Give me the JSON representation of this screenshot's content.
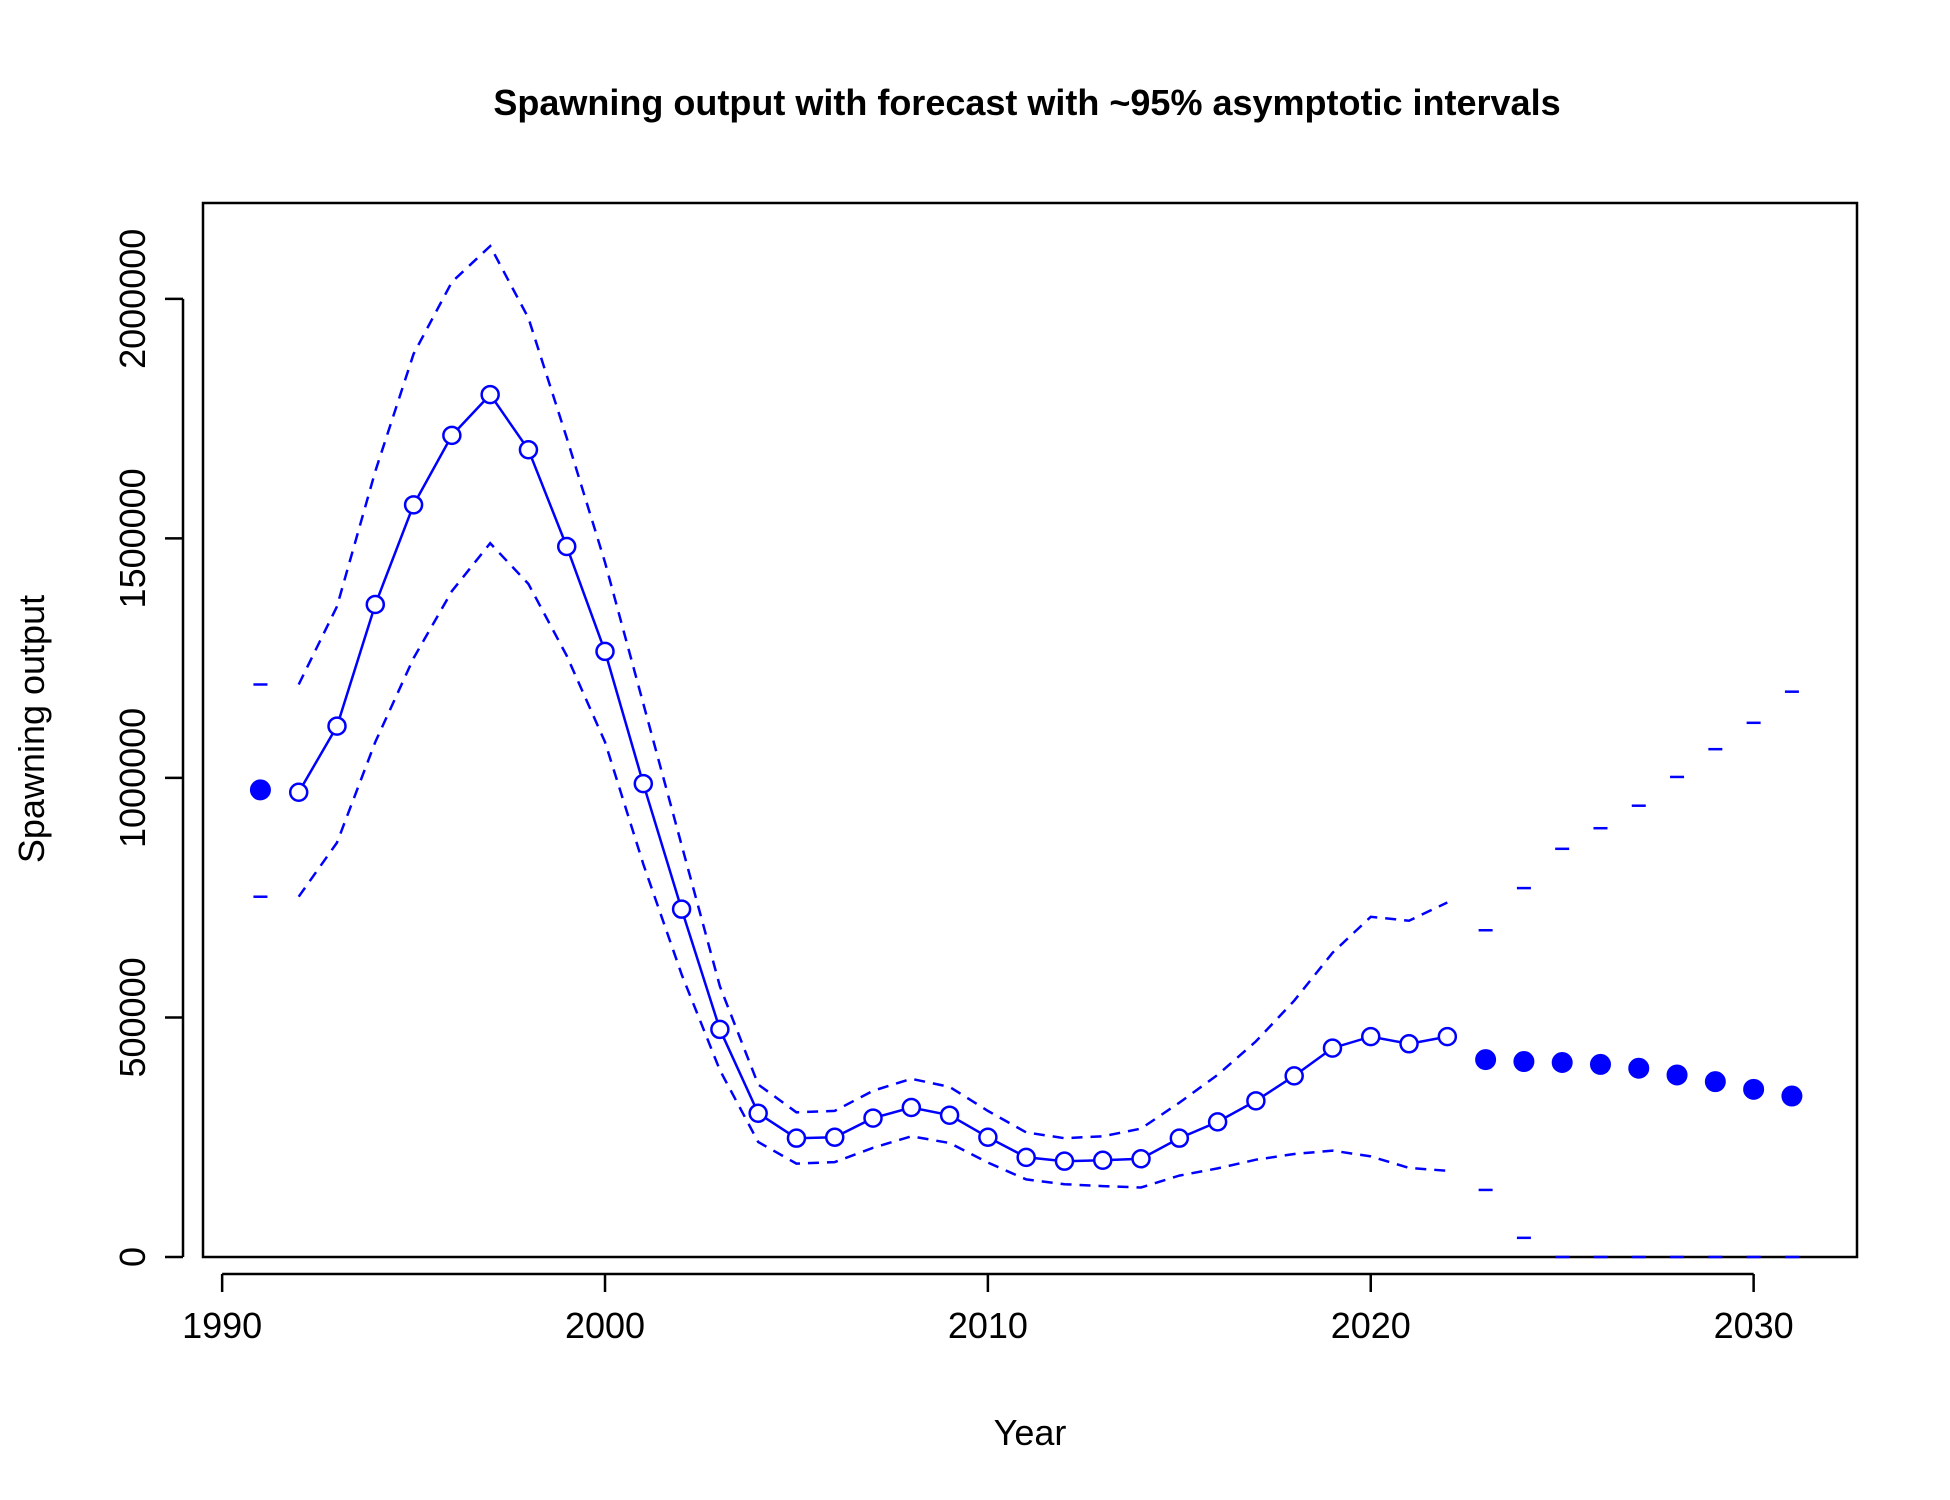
{
  "chart_data": {
    "type": "line",
    "title": "Spawning output with forecast with ~95% asymptotic intervals",
    "xlabel": "Year",
    "ylabel": "Spawning output",
    "xlim": [
      1989.5,
      2032.7
    ],
    "ylim": [
      0,
      2200000
    ],
    "xticks": [
      "1990",
      "2000",
      "2010",
      "2020",
      "2030"
    ],
    "yticks": [
      "0",
      "500000",
      "1000000",
      "1500000",
      "2000000"
    ],
    "grid": false,
    "legend": "none",
    "colors": {
      "series": "#0000ff",
      "axis": "#000000"
    },
    "initial": {
      "x": 1991,
      "y": 975000,
      "lower": 752000,
      "upper": 1195000
    },
    "estimate": {
      "x": [
        1992,
        1993,
        1994,
        1995,
        1996,
        1997,
        1998,
        1999,
        2000,
        2001,
        2002,
        2003,
        2004,
        2005,
        2006,
        2007,
        2008,
        2009,
        2010,
        2011,
        2012,
        2013,
        2014,
        2015,
        2016,
        2017,
        2018,
        2019,
        2020,
        2021,
        2022
      ],
      "y": [
        970000,
        1108000,
        1362000,
        1570000,
        1715000,
        1800000,
        1685000,
        1483000,
        1264000,
        988000,
        726000,
        475000,
        300000,
        248000,
        250000,
        290000,
        312000,
        296000,
        250000,
        208000,
        200000,
        202000,
        205000,
        248000,
        282000,
        326000,
        378000,
        436000,
        460000,
        445000,
        460000
      ],
      "lower": [
        752000,
        865000,
        1075000,
        1250000,
        1390000,
        1490000,
        1405000,
        1255000,
        1075000,
        820000,
        590000,
        390000,
        240000,
        195000,
        198000,
        228000,
        252000,
        238000,
        197000,
        162000,
        152000,
        148000,
        145000,
        170000,
        185000,
        203000,
        215000,
        222000,
        210000,
        186000,
        180000
      ],
      "upper": [
        1195000,
        1358000,
        1640000,
        1885000,
        2035000,
        2110000,
        1960000,
        1710000,
        1450000,
        1155000,
        860000,
        565000,
        360000,
        302000,
        305000,
        347000,
        372000,
        355000,
        305000,
        260000,
        248000,
        252000,
        268000,
        322000,
        380000,
        450000,
        535000,
        635000,
        710000,
        702000,
        740000
      ]
    },
    "forecast": {
      "x": [
        2023,
        2024,
        2025,
        2026,
        2027,
        2028,
        2029,
        2030,
        2031
      ],
      "y": [
        412000,
        408000,
        406000,
        402000,
        394000,
        380000,
        366000,
        350000,
        336000
      ],
      "lower": [
        140000,
        40000,
        0,
        0,
        0,
        0,
        0,
        0,
        0
      ],
      "upper": [
        682000,
        770000,
        852000,
        895000,
        942000,
        1002000,
        1060000,
        1115000,
        1180000
      ]
    }
  }
}
